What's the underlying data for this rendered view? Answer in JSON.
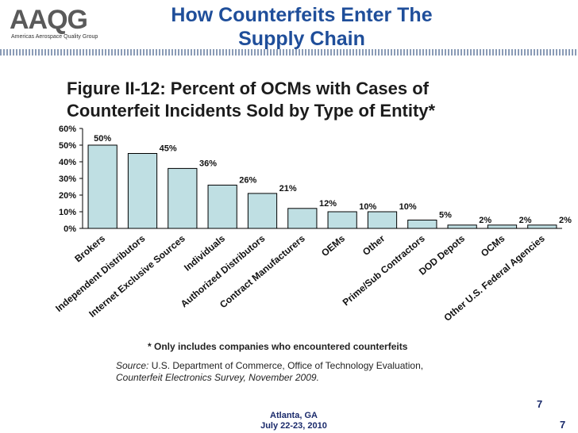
{
  "logo": {
    "mark": "AAQG",
    "tagline": "Americas Aerospace Quality Group"
  },
  "slide": {
    "title_line1": "How Counterfeits Enter The",
    "title_line2": "Supply Chain"
  },
  "figure": {
    "title_line1": "Figure II-12: Percent of OCMs with Cases of",
    "title_line2": "Counterfeit Incidents Sold by Type of Entity*"
  },
  "chart_data": {
    "type": "bar",
    "title": "Figure II-12: Percent of OCMs with Cases of Counterfeit Incidents Sold by Type of Entity*",
    "categories": [
      "Brokers",
      "Independent Distributors",
      "Internet Exclusive Sources",
      "Individuals",
      "Authorized Distributors",
      "Contract Manufacturers",
      "OEMs",
      "Other",
      "Prime/Sub Contractors",
      "DOD Depots",
      "OCMs",
      "Other U.S. Federal Agencies"
    ],
    "values": [
      50,
      45,
      36,
      26,
      21,
      12,
      10,
      10,
      5,
      2,
      2,
      2
    ],
    "data_labels": [
      "50%",
      "45%",
      "36%",
      "26%",
      "21%",
      "12%",
      "10%",
      "10%",
      "5%",
      "2%",
      "2%",
      "2%"
    ],
    "y_ticks": [
      "0%",
      "10%",
      "20%",
      "30%",
      "40%",
      "50%",
      "60%"
    ],
    "ylim": [
      0,
      60
    ],
    "grid": false,
    "bar_color": "#bfdfe3",
    "xlabel": "",
    "ylabel": ""
  },
  "footnote": "* Only includes companies who encountered counterfeits",
  "source": {
    "label": "Source:",
    "line1_rest": " U.S. Department of Commerce, Office of Technology Evaluation,",
    "line2": "Counterfeit Electronics Survey, November 2009."
  },
  "footer": {
    "city": "Atlanta, GA",
    "date": "July 22-23, 2010",
    "page_a": "7",
    "page_b": "7"
  }
}
